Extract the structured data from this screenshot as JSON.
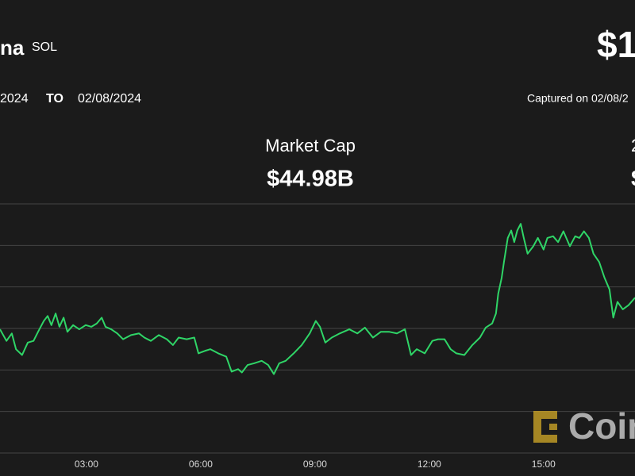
{
  "header": {
    "name": "na",
    "symbol": "SOL",
    "price": "$1",
    "from": "2024",
    "to_label": "TO",
    "to": "02/08/2024",
    "captured": "Captured on 02/08/2",
    "metric_label": "Market Cap",
    "metric_value": "$44.98B",
    "right_label": "2",
    "right_value": "$",
    "watermark": "Coin"
  },
  "chart_data": {
    "type": "line",
    "color": "#2fd567",
    "grid": true,
    "xlim": [
      0.73,
      17.4
    ],
    "xticks": [
      {
        "value": 3,
        "label": "03:00"
      },
      {
        "value": 6,
        "label": "06:00"
      },
      {
        "value": 9,
        "label": "09:00"
      },
      {
        "value": 12,
        "label": "12:00"
      },
      {
        "value": 15,
        "label": "15:00"
      }
    ],
    "ylim": [
      97,
      100
    ],
    "yticks": [
      97,
      97.5,
      98,
      98.5,
      99,
      99.5,
      100
    ],
    "x": [
      0.73,
      0.9,
      1.04,
      1.15,
      1.31,
      1.46,
      1.61,
      1.73,
      1.88,
      1.98,
      2.08,
      2.19,
      2.29,
      2.4,
      2.5,
      2.65,
      2.81,
      2.98,
      3.13,
      3.27,
      3.4,
      3.5,
      3.65,
      3.81,
      3.96,
      4.17,
      4.38,
      4.52,
      4.69,
      4.9,
      5.11,
      5.27,
      5.42,
      5.63,
      5.83,
      5.94,
      6.11,
      6.25,
      6.46,
      6.67,
      6.81,
      6.98,
      7.08,
      7.23,
      7.4,
      7.6,
      7.77,
      7.92,
      8.06,
      8.23,
      8.44,
      8.65,
      8.86,
      9.02,
      9.13,
      9.27,
      9.44,
      9.65,
      9.9,
      10.11,
      10.31,
      10.52,
      10.73,
      10.94,
      11.15,
      11.36,
      11.52,
      11.67,
      11.88,
      12.08,
      12.23,
      12.4,
      12.56,
      12.71,
      12.92,
      13.13,
      13.33,
      13.48,
      13.65,
      13.75,
      13.81,
      13.9,
      13.96,
      14.06,
      14.15,
      14.23,
      14.31,
      14.4,
      14.48,
      14.58,
      14.73,
      14.85,
      15.0,
      15.1,
      15.25,
      15.38,
      15.52,
      15.69,
      15.83,
      15.94,
      16.06,
      16.19,
      16.31,
      16.46,
      16.6,
      16.73,
      16.83,
      16.94,
      17.08,
      17.23,
      17.4
    ],
    "values": [
      98.49,
      98.35,
      98.44,
      98.25,
      98.18,
      98.33,
      98.35,
      98.46,
      98.59,
      98.65,
      98.54,
      98.68,
      98.52,
      98.63,
      98.46,
      98.54,
      98.49,
      98.54,
      98.52,
      98.56,
      98.63,
      98.52,
      98.49,
      98.44,
      98.37,
      98.42,
      98.44,
      98.39,
      98.35,
      98.42,
      98.37,
      98.3,
      98.39,
      98.37,
      98.39,
      98.2,
      98.23,
      98.25,
      98.2,
      98.16,
      97.98,
      98.01,
      97.97,
      98.06,
      98.08,
      98.11,
      98.06,
      97.95,
      98.08,
      98.11,
      98.2,
      98.3,
      98.44,
      98.59,
      98.52,
      98.33,
      98.39,
      98.44,
      98.49,
      98.44,
      98.51,
      98.39,
      98.46,
      98.46,
      98.44,
      98.49,
      98.18,
      98.25,
      98.2,
      98.35,
      98.37,
      98.37,
      98.25,
      98.2,
      98.18,
      98.3,
      98.39,
      98.51,
      98.56,
      98.68,
      98.92,
      99.11,
      99.3,
      99.59,
      99.68,
      99.54,
      99.68,
      99.76,
      99.59,
      99.4,
      99.49,
      99.59,
      99.45,
      99.59,
      99.61,
      99.54,
      99.67,
      99.49,
      99.61,
      99.59,
      99.67,
      99.59,
      99.4,
      99.3,
      99.11,
      98.97,
      98.63,
      98.82,
      98.73,
      98.78,
      98.87
    ]
  }
}
